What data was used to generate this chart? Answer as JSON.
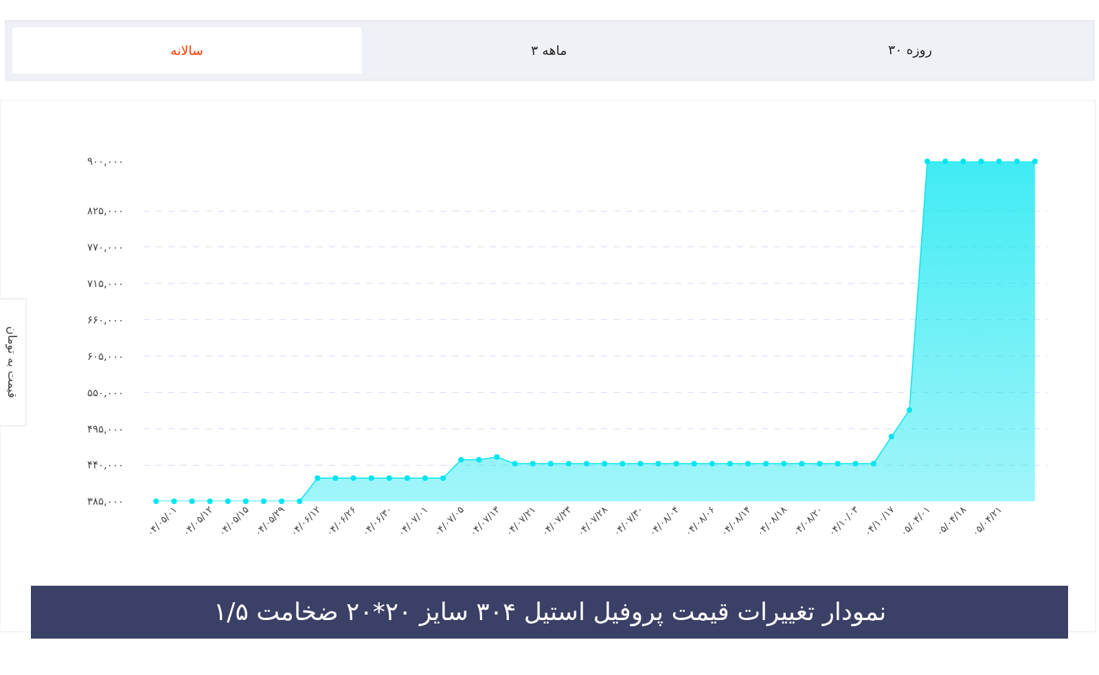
{
  "chart_data": {
    "type": "area",
    "title": "نمودار تغییرات قیمت پروفیل استیل ۳۰۴ سایز ۲۰*۲۰ ضخامت ۱/۵",
    "annotations": [
      "سالانه",
      "۳ ماهه",
      "۳۰ روزه",
      "قیمت به تومان"
    ],
    "categories": [
      null,
      "۰۴/۰۵/۰۱",
      null,
      "۰۴/۰۵/۱۲",
      null,
      "۰۴/۰۵/۱۵",
      null,
      "۰۴/۰۵/۲۹",
      null,
      "۰۴/۰۶/۱۲",
      null,
      "۰۴/۰۶/۲۶",
      null,
      "۰۴/۰۶/۳۰",
      null,
      "۰۴/۰۷/۰۱",
      null,
      "۰۴/۰۷/۰۵",
      null,
      "۰۴/۰۷/۱۳",
      null,
      "۰۴/۰۷/۲۱",
      null,
      "۰۴/۰۷/۲۳",
      null,
      "۰۴/۰۷/۲۸",
      null,
      "۰۴/۰۷/۳۰",
      null,
      "۰۴/۰۸/۰۴",
      null,
      "۰۴/۰۸/۰۶",
      null,
      "۰۴/۰۸/۱۴",
      null,
      "۰۴/۰۸/۱۸",
      null,
      "۰۴/۰۸/۲۰",
      null,
      "۰۴/۱۰/۰۳",
      null,
      "۰۴/۱۰/۱۷",
      null,
      "۰۵/۰۴/۰۱",
      null,
      "۰۵/۰۴/۱۸",
      null,
      "۰۵/۰۴/۲۱",
      null,
      null
    ],
    "series": [
      {
        "color": "#00e5f0",
        "values": [
          385000,
          385000,
          385000,
          385000,
          385000,
          385000,
          385000,
          385000,
          385000,
          420000,
          420000,
          420000,
          420000,
          420000,
          420000,
          420000,
          420000,
          448000,
          448000,
          452000,
          442000,
          442000,
          442000,
          442000,
          442000,
          442000,
          442000,
          442000,
          442000,
          442000,
          442000,
          442000,
          442000,
          442000,
          442000,
          442000,
          442000,
          442000,
          442000,
          442000,
          442000,
          483000,
          523000,
          900000,
          900000,
          900000,
          900000,
          900000,
          900000,
          900000
        ]
      }
    ],
    "ylim": [
      385000,
      900000
    ],
    "yticks": [
      {
        "value": 385000,
        "label": "۳۸۵,۰۰۰"
      },
      {
        "value": 440000,
        "label": "۴۴۰,۰۰۰"
      },
      {
        "value": 495000,
        "label": "۴۹۵,۰۰۰"
      },
      {
        "value": 550000,
        "label": "۵۵۰,۰۰۰"
      },
      {
        "value": 605000,
        "label": "۶۰۵,۰۰۰"
      },
      {
        "value": 660000,
        "label": "۶۶۰,۰۰۰"
      },
      {
        "value": 715000,
        "label": "۷۱۵,۰۰۰"
      },
      {
        "value": 770000,
        "label": "۷۷۰,۰۰۰"
      },
      {
        "value": 825000,
        "label": "۸۲۵,۰۰۰"
      },
      {
        "value": 900000,
        "label": "۹۰۰,۰۰۰"
      }
    ],
    "grid": "y",
    "marker": "circle",
    "line_style": "solid"
  }
}
